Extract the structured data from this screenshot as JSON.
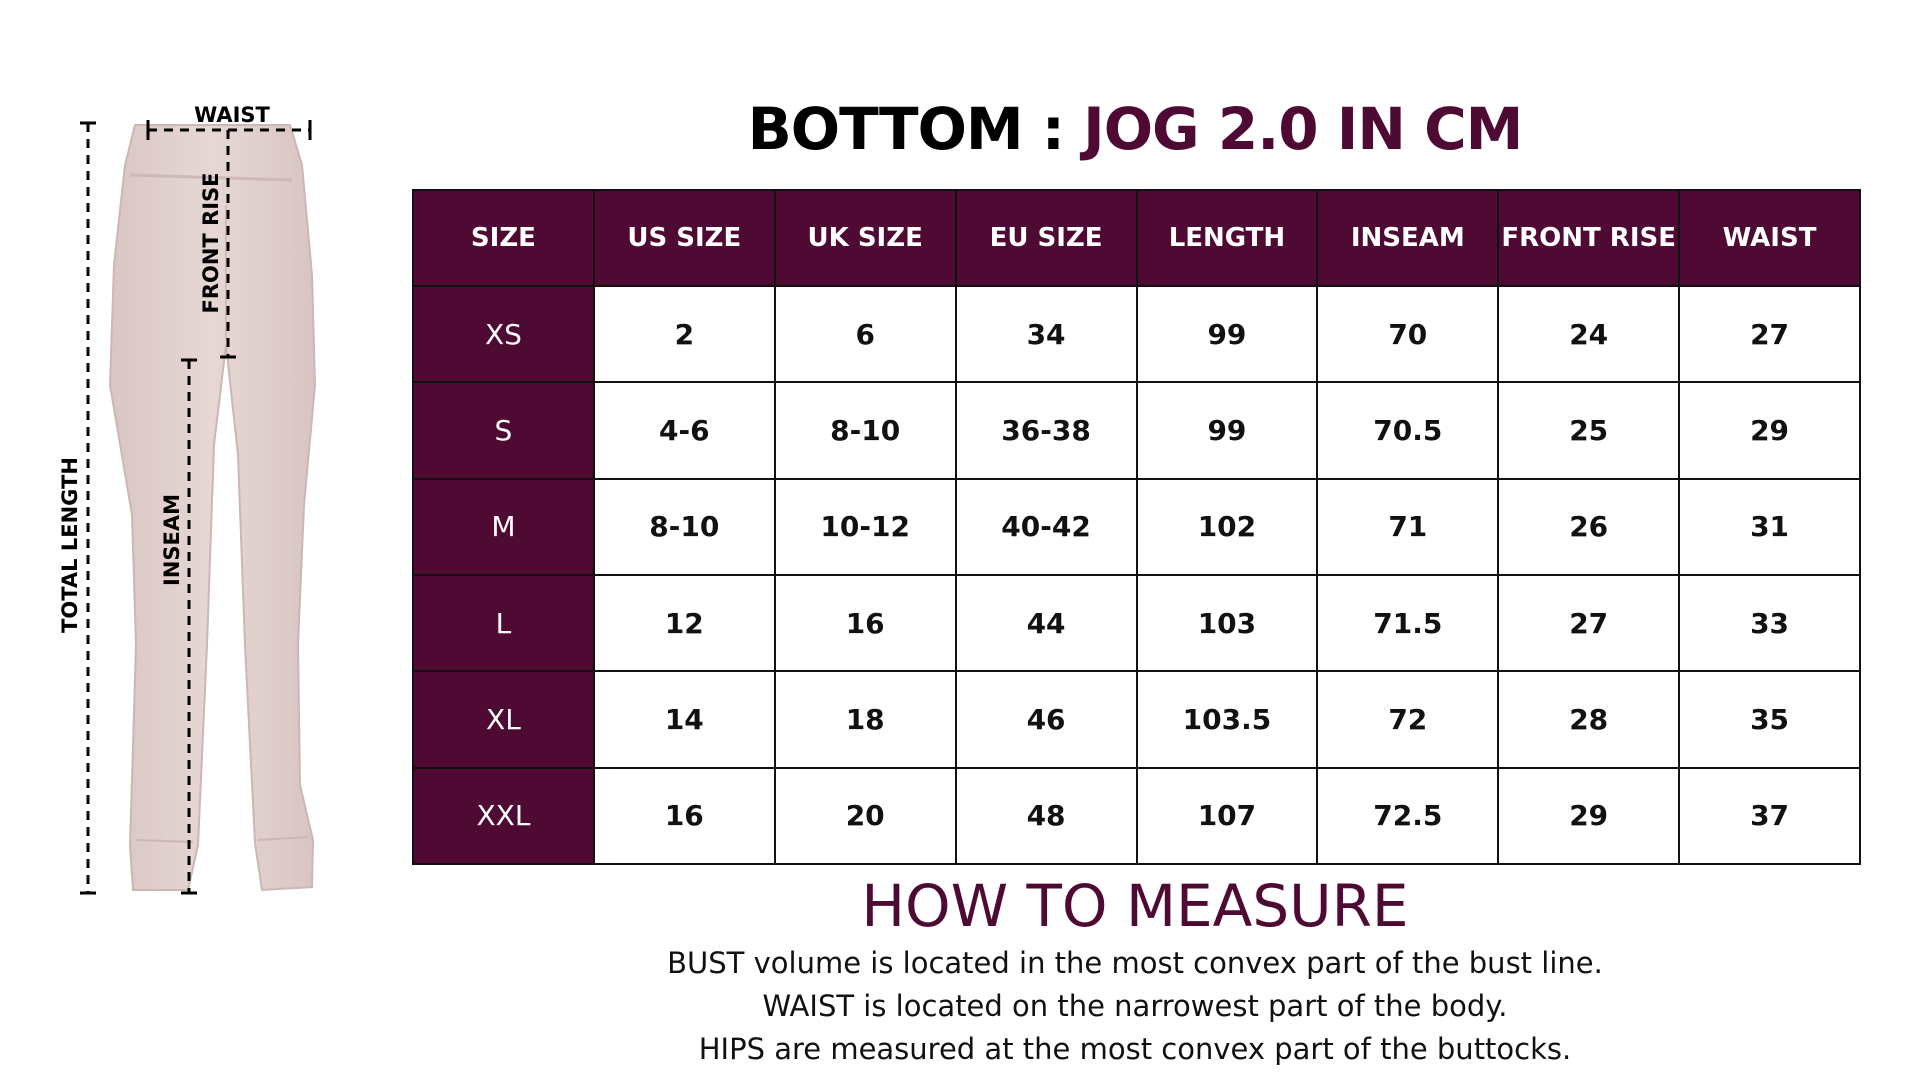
{
  "colors": {
    "brand": "#4f0a33",
    "pant_fabric": "#e3d3d1",
    "background": "#ffffff"
  },
  "diagram": {
    "labels": {
      "waist": "WAIST",
      "front_rise": "FRONT RISE",
      "inseam": "INSEAM",
      "total_length": "TOTAL LENGTH"
    }
  },
  "title": {
    "prefix": "BOTTOM : ",
    "product": "JOG 2.0 IN CM"
  },
  "table": {
    "headers": [
      "SIZE",
      "US SIZE",
      "UK SIZE",
      "EU SIZE",
      "LENGTH",
      "INSEAM",
      "FRONT RISE",
      "WAIST"
    ],
    "rows": [
      [
        "XS",
        "2",
        "6",
        "34",
        "99",
        "70",
        "24",
        "27"
      ],
      [
        "S",
        "4-6",
        "8-10",
        "36-38",
        "99",
        "70.5",
        "25",
        "29"
      ],
      [
        "M",
        "8-10",
        "10-12",
        "40-42",
        "102",
        "71",
        "26",
        "31"
      ],
      [
        "L",
        "12",
        "16",
        "44",
        "103",
        "71.5",
        "27",
        "33"
      ],
      [
        "XL",
        "14",
        "18",
        "46",
        "103.5",
        "72",
        "28",
        "35"
      ],
      [
        "XXL",
        "16",
        "20",
        "48",
        "107",
        "72.5",
        "29",
        "37"
      ]
    ]
  },
  "how_to_measure": {
    "heading": "HOW TO MEASURE",
    "lines": [
      "BUST volume is located in the most convex part of the bust line.",
      "WAIST is located on the narrowest part of the body.",
      "HIPS are measured at the most convex part of the buttocks."
    ]
  }
}
